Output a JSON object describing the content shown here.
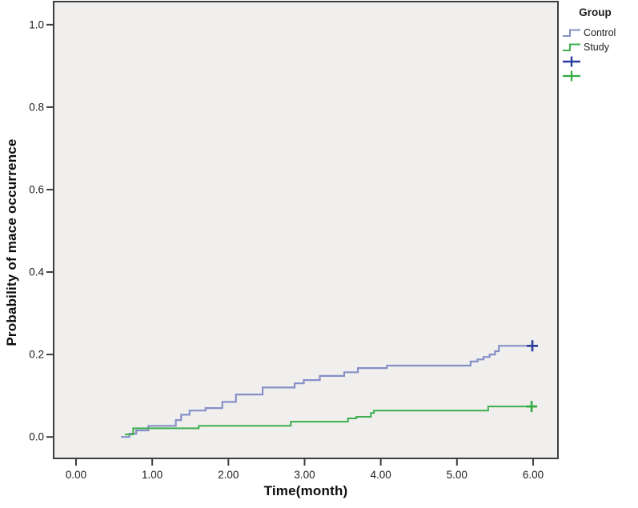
{
  "figure": {
    "legend": {
      "title": "Group",
      "items": [
        {
          "label": "Control",
          "glyph": "step",
          "color": "#8590c7"
        },
        {
          "label": "Study",
          "glyph": "step",
          "color": "#3eae4f"
        },
        {
          "label": "",
          "glyph": "plus",
          "color": "#2c3c9e"
        },
        {
          "label": "",
          "glyph": "plus",
          "color": "#33ab43"
        }
      ]
    },
    "x_axis": {
      "title": "Time(month)",
      "tick_labels": [
        "0.00",
        "1.00",
        "2.00",
        "3.00",
        "4.00",
        "5.00",
        "6.00"
      ],
      "tick_values": [
        0,
        1,
        2,
        3,
        4,
        5,
        6
      ]
    },
    "y_axis": {
      "title": "Probability of mace occurrence",
      "tick_labels": [
        "0.0",
        "0.2",
        "0.4",
        "0.6",
        "0.8",
        "1.0"
      ],
      "tick_values": [
        0,
        0.2,
        0.4,
        0.6,
        0.8,
        1.0
      ]
    }
  },
  "chart_data": {
    "type": "line",
    "subtype": "kaplan-meier-step",
    "title": "",
    "xlabel": "Time(month)",
    "ylabel": "Probability of mace occurrence",
    "xlim": [
      -0.294,
      6.326
    ],
    "ylim": [
      -0.052,
      1.056
    ],
    "grid": false,
    "legend_position": "top-right",
    "plot_bg": "#f0efed",
    "frame_color": "#3d3d3d",
    "series": [
      {
        "name": "Control",
        "color": "#8590c7",
        "line_width": 2.2,
        "censor_color": "#2c3c9e",
        "points": [
          [
            0.59,
            0.0
          ],
          [
            0.7,
            0.008
          ],
          [
            0.79,
            0.016
          ],
          [
            0.95,
            0.027
          ],
          [
            1.31,
            0.041
          ],
          [
            1.38,
            0.054
          ],
          [
            1.49,
            0.064
          ],
          [
            1.7,
            0.07
          ],
          [
            1.92,
            0.085
          ],
          [
            2.1,
            0.103
          ],
          [
            2.45,
            0.12
          ],
          [
            2.87,
            0.13
          ],
          [
            2.99,
            0.138
          ],
          [
            3.2,
            0.148
          ],
          [
            3.52,
            0.157
          ],
          [
            3.7,
            0.167
          ],
          [
            4.08,
            0.173
          ],
          [
            5.18,
            0.183
          ],
          [
            5.27,
            0.188
          ],
          [
            5.35,
            0.194
          ],
          [
            5.43,
            0.2
          ],
          [
            5.5,
            0.208
          ],
          [
            5.55,
            0.221
          ],
          [
            6.06,
            0.221
          ]
        ],
        "censored": [
          [
            5.99,
            0.221
          ]
        ]
      },
      {
        "name": "Study",
        "color": "#3eae4f",
        "line_width": 2,
        "censor_color": "#33ab43",
        "points": [
          [
            0.64,
            0.006
          ],
          [
            0.75,
            0.021
          ],
          [
            1.61,
            0.027
          ],
          [
            2.82,
            0.037
          ],
          [
            3.57,
            0.045
          ],
          [
            3.68,
            0.049
          ],
          [
            3.87,
            0.058
          ],
          [
            3.91,
            0.064
          ],
          [
            5.41,
            0.074
          ],
          [
            6.05,
            0.074
          ]
        ],
        "censored": [
          [
            5.98,
            0.074
          ]
        ]
      }
    ]
  }
}
